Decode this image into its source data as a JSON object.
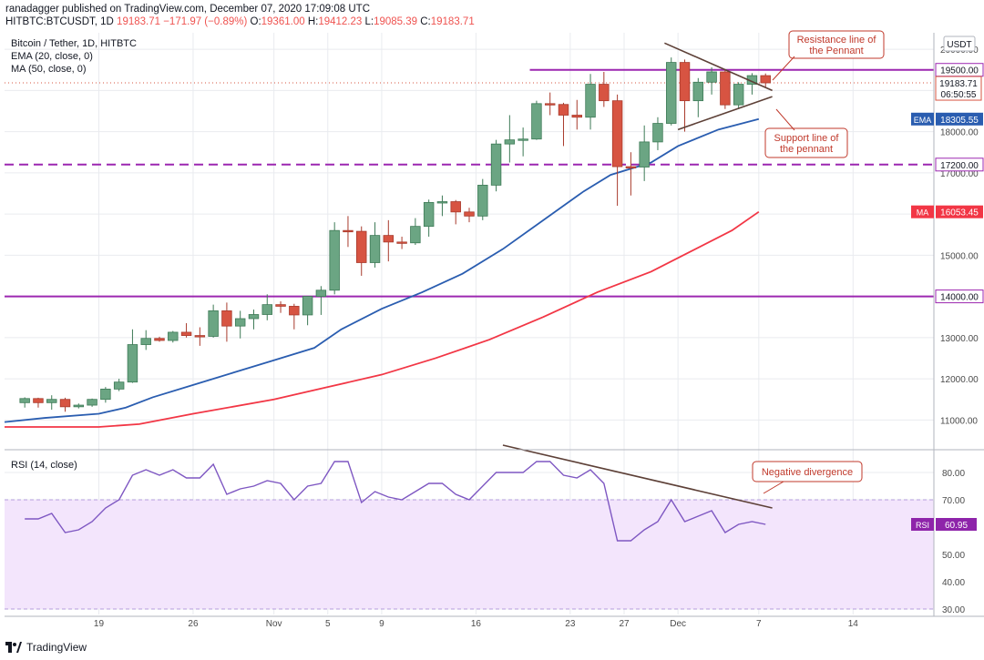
{
  "header": {
    "author": "ranadagger",
    "published_text": "published on TradingView.com, December 07, 2020 17:09:08 UTC",
    "symbol": "HITBTC:BTCUSDT, 1D",
    "price": "19183.71",
    "change": "−171.97 (−0.89%)",
    "o_label": "O:",
    "o_value": "19361.00",
    "h_label": "H:",
    "h_value": "19412.23",
    "l_label": "L:",
    "l_value": "19085.39",
    "c_label": "C:",
    "c_value": "19183.71"
  },
  "legend": {
    "title": "Bitcoin / Tether, 1D, HITBTC",
    "ema": "EMA (20, close, 0)",
    "ma": "MA (50, close, 0)",
    "rsi": "RSI (14, close)"
  },
  "currency": "USDT",
  "footer": {
    "brand": "TradingView"
  },
  "colors": {
    "up": "#6ba583",
    "down": "#d75442",
    "ema": "#2962ff",
    "ma": "#f23645",
    "level": "#9c27b0",
    "rsi": "#7e57c2",
    "band": "#f3e5fc",
    "trend": "#5d4037",
    "grid": "#e9ebef"
  },
  "chart_data": [
    {
      "type": "candlestick",
      "title": "Bitcoin / Tether, 1D, HITBTC",
      "ylim": [
        10300,
        20400
      ],
      "y_ticks": [
        11000,
        12000,
        13000,
        14000,
        15000,
        16000,
        17000,
        18000,
        19000,
        20000
      ],
      "y_tick_labels": [
        "11000.00",
        "12000.00",
        "13000.00",
        "14000.00",
        "15000.00",
        "16000.00",
        "17000.00",
        "18000.00",
        "19000.00",
        "20000.00"
      ],
      "x_ticks": [
        {
          "date": "2020-10-19",
          "label": "19"
        },
        {
          "date": "2020-10-26",
          "label": "26"
        },
        {
          "date": "2020-11-01",
          "label": "Nov"
        },
        {
          "date": "2020-11-05",
          "label": "5"
        },
        {
          "date": "2020-11-09",
          "label": "9"
        },
        {
          "date": "2020-11-16",
          "label": "16"
        },
        {
          "date": "2020-11-23",
          "label": "23"
        },
        {
          "date": "2020-11-27",
          "label": "27"
        },
        {
          "date": "2020-12-01",
          "label": "Dec"
        },
        {
          "date": "2020-12-07",
          "label": "7"
        },
        {
          "date": "2020-12-14",
          "label": "14"
        }
      ],
      "x_range": [
        "2020-10-12",
        "2020-12-20"
      ],
      "candles": [
        {
          "date": "2020-10-13",
          "o": 11420,
          "h": 11550,
          "l": 11300,
          "c": 11520
        },
        {
          "date": "2020-10-14",
          "o": 11520,
          "h": 11540,
          "l": 11300,
          "c": 11420
        },
        {
          "date": "2020-10-15",
          "o": 11420,
          "h": 11600,
          "l": 11250,
          "c": 11500
        },
        {
          "date": "2020-10-16",
          "o": 11500,
          "h": 11540,
          "l": 11200,
          "c": 11320
        },
        {
          "date": "2020-10-17",
          "o": 11320,
          "h": 11400,
          "l": 11280,
          "c": 11360
        },
        {
          "date": "2020-10-18",
          "o": 11360,
          "h": 11520,
          "l": 11320,
          "c": 11500
        },
        {
          "date": "2020-10-19",
          "o": 11500,
          "h": 11800,
          "l": 11420,
          "c": 11750
        },
        {
          "date": "2020-10-20",
          "o": 11750,
          "h": 12000,
          "l": 11700,
          "c": 11920
        },
        {
          "date": "2020-10-21",
          "o": 11920,
          "h": 13200,
          "l": 11900,
          "c": 12830
        },
        {
          "date": "2020-10-22",
          "o": 12830,
          "h": 13180,
          "l": 12700,
          "c": 12980
        },
        {
          "date": "2020-10-23",
          "o": 12980,
          "h": 13020,
          "l": 12900,
          "c": 12930
        },
        {
          "date": "2020-10-24",
          "o": 12930,
          "h": 13160,
          "l": 12880,
          "c": 13130
        },
        {
          "date": "2020-10-25",
          "o": 13130,
          "h": 13350,
          "l": 13000,
          "c": 13050
        },
        {
          "date": "2020-10-26",
          "o": 13050,
          "h": 13250,
          "l": 12800,
          "c": 13030
        },
        {
          "date": "2020-10-27",
          "o": 13030,
          "h": 13800,
          "l": 13000,
          "c": 13650
        },
        {
          "date": "2020-10-28",
          "o": 13650,
          "h": 13850,
          "l": 12900,
          "c": 13280
        },
        {
          "date": "2020-10-29",
          "o": 13280,
          "h": 13650,
          "l": 12980,
          "c": 13460
        },
        {
          "date": "2020-10-30",
          "o": 13460,
          "h": 13680,
          "l": 13200,
          "c": 13560
        },
        {
          "date": "2020-10-31",
          "o": 13560,
          "h": 14050,
          "l": 13420,
          "c": 13800
        },
        {
          "date": "2020-11-01",
          "o": 13800,
          "h": 13880,
          "l": 13600,
          "c": 13760
        },
        {
          "date": "2020-11-02",
          "o": 13760,
          "h": 13820,
          "l": 13200,
          "c": 13550
        },
        {
          "date": "2020-11-03",
          "o": 13550,
          "h": 14000,
          "l": 13300,
          "c": 14000
        },
        {
          "date": "2020-11-04",
          "o": 14000,
          "h": 14250,
          "l": 13550,
          "c": 14150
        },
        {
          "date": "2020-11-05",
          "o": 14150,
          "h": 15800,
          "l": 14050,
          "c": 15600
        },
        {
          "date": "2020-11-06",
          "o": 15600,
          "h": 15950,
          "l": 15200,
          "c": 15580
        },
        {
          "date": "2020-11-07",
          "o": 15580,
          "h": 15700,
          "l": 14500,
          "c": 14820
        },
        {
          "date": "2020-11-08",
          "o": 14820,
          "h": 15800,
          "l": 14700,
          "c": 15480
        },
        {
          "date": "2020-11-09",
          "o": 15480,
          "h": 15850,
          "l": 14850,
          "c": 15320
        },
        {
          "date": "2020-11-10",
          "o": 15320,
          "h": 15450,
          "l": 15150,
          "c": 15300
        },
        {
          "date": "2020-11-11",
          "o": 15300,
          "h": 15900,
          "l": 15250,
          "c": 15700
        },
        {
          "date": "2020-11-12",
          "o": 15700,
          "h": 16350,
          "l": 15450,
          "c": 16280
        },
        {
          "date": "2020-11-13",
          "o": 16280,
          "h": 16450,
          "l": 15950,
          "c": 16300
        },
        {
          "date": "2020-11-14",
          "o": 16300,
          "h": 16340,
          "l": 15750,
          "c": 16050
        },
        {
          "date": "2020-11-15",
          "o": 16050,
          "h": 16150,
          "l": 15800,
          "c": 15950
        },
        {
          "date": "2020-11-16",
          "o": 15950,
          "h": 16850,
          "l": 15850,
          "c": 16700
        },
        {
          "date": "2020-11-17",
          "o": 16700,
          "h": 17800,
          "l": 16550,
          "c": 17700
        },
        {
          "date": "2020-11-18",
          "o": 17700,
          "h": 18400,
          "l": 17250,
          "c": 17800
        },
        {
          "date": "2020-11-19",
          "o": 17800,
          "h": 18100,
          "l": 17400,
          "c": 17820
        },
        {
          "date": "2020-11-20",
          "o": 17820,
          "h": 18750,
          "l": 17800,
          "c": 18680
        },
        {
          "date": "2020-11-21",
          "o": 18680,
          "h": 18950,
          "l": 18400,
          "c": 18660
        },
        {
          "date": "2020-11-22",
          "o": 18660,
          "h": 18700,
          "l": 17650,
          "c": 18400
        },
        {
          "date": "2020-11-23",
          "o": 18400,
          "h": 18770,
          "l": 18050,
          "c": 18350
        },
        {
          "date": "2020-11-24",
          "o": 18350,
          "h": 19400,
          "l": 18050,
          "c": 19150
        },
        {
          "date": "2020-11-25",
          "o": 19150,
          "h": 19450,
          "l": 18600,
          "c": 18750
        },
        {
          "date": "2020-11-26",
          "o": 18750,
          "h": 18900,
          "l": 16200,
          "c": 17150
        },
        {
          "date": "2020-11-27",
          "o": 17150,
          "h": 17500,
          "l": 16450,
          "c": 17140
        },
        {
          "date": "2020-11-28",
          "o": 17140,
          "h": 18150,
          "l": 16800,
          "c": 17750
        },
        {
          "date": "2020-11-29",
          "o": 17750,
          "h": 18350,
          "l": 17550,
          "c": 18200
        },
        {
          "date": "2020-11-30",
          "o": 18200,
          "h": 19800,
          "l": 18150,
          "c": 19680
        },
        {
          "date": "2020-12-01",
          "o": 19680,
          "h": 19750,
          "l": 18000,
          "c": 18750
        },
        {
          "date": "2020-12-02",
          "o": 18750,
          "h": 19300,
          "l": 18350,
          "c": 19200
        },
        {
          "date": "2020-12-03",
          "o": 19200,
          "h": 19560,
          "l": 18900,
          "c": 19450
        },
        {
          "date": "2020-12-04",
          "o": 19450,
          "h": 19500,
          "l": 18550,
          "c": 18650
        },
        {
          "date": "2020-12-05",
          "o": 18650,
          "h": 19200,
          "l": 18550,
          "c": 19150
        },
        {
          "date": "2020-12-06",
          "o": 19150,
          "h": 19420,
          "l": 18900,
          "c": 19360
        },
        {
          "date": "2020-12-07",
          "o": 19360,
          "h": 19412,
          "l": 19085,
          "c": 19184
        }
      ],
      "ema": {
        "name": "EMA",
        "last": "18305.55",
        "values": [
          [
            "2020-10-12",
            10950
          ],
          [
            "2020-10-15",
            11050
          ],
          [
            "2020-10-19",
            11150
          ],
          [
            "2020-10-21",
            11300
          ],
          [
            "2020-10-23",
            11550
          ],
          [
            "2020-10-26",
            11850
          ],
          [
            "2020-10-29",
            12150
          ],
          [
            "2020-11-01",
            12450
          ],
          [
            "2020-11-04",
            12750
          ],
          [
            "2020-11-06",
            13200
          ],
          [
            "2020-11-09",
            13700
          ],
          [
            "2020-11-12",
            14100
          ],
          [
            "2020-11-15",
            14550
          ],
          [
            "2020-11-18",
            15150
          ],
          [
            "2020-11-21",
            15850
          ],
          [
            "2020-11-24",
            16550
          ],
          [
            "2020-11-26",
            16950
          ],
          [
            "2020-11-29",
            17250
          ],
          [
            "2020-12-01",
            17650
          ],
          [
            "2020-12-04",
            18050
          ],
          [
            "2020-12-07",
            18305
          ]
        ]
      },
      "ma": {
        "name": "MA",
        "last": "16053.45",
        "values": [
          [
            "2020-10-12",
            10830
          ],
          [
            "2020-10-19",
            10830
          ],
          [
            "2020-10-22",
            10900
          ],
          [
            "2020-10-26",
            11150
          ],
          [
            "2020-11-01",
            11500
          ],
          [
            "2020-11-05",
            11800
          ],
          [
            "2020-11-09",
            12100
          ],
          [
            "2020-11-13",
            12500
          ],
          [
            "2020-11-17",
            12950
          ],
          [
            "2020-11-21",
            13500
          ],
          [
            "2020-11-25",
            14100
          ],
          [
            "2020-11-29",
            14600
          ],
          [
            "2020-12-02",
            15100
          ],
          [
            "2020-12-05",
            15600
          ],
          [
            "2020-12-07",
            16053
          ]
        ]
      },
      "levels": [
        {
          "value": 19500,
          "label": "19500.00",
          "style": "solid",
          "from": "2020-11-20"
        },
        {
          "value": 17200,
          "label": "17200.00",
          "style": "dashed"
        },
        {
          "value": 14000,
          "label": "14000.00",
          "style": "solid"
        }
      ],
      "last_price": {
        "value": 19183.71,
        "label": "19183.71",
        "countdown": "06:50:55"
      },
      "trendlines": [
        {
          "name": "resistance",
          "from": [
            "2020-11-30",
            20150
          ],
          "to": [
            "2020-12-08",
            19000
          ]
        },
        {
          "name": "support",
          "from": [
            "2020-12-01",
            18050
          ],
          "to": [
            "2020-12-08",
            18850
          ]
        }
      ],
      "annotations": [
        {
          "name": "resistance-callout",
          "lines": [
            "Resistance line of",
            "the Pennant"
          ]
        },
        {
          "name": "support-callout",
          "lines": [
            "Support line of",
            "the pennant"
          ]
        }
      ]
    },
    {
      "type": "line",
      "title": "RSI (14, close)",
      "ylim": [
        28,
        88
      ],
      "y_ticks": [
        30,
        40,
        50,
        60,
        70,
        80
      ],
      "y_tick_labels": [
        "30.00",
        "40.00",
        "50.00",
        "60.00",
        "70.00",
        "80.00"
      ],
      "band": [
        30,
        70
      ],
      "series": [
        {
          "name": "RSI",
          "last": "60.95",
          "values": [
            63,
            63,
            65,
            58,
            59,
            62,
            67,
            70,
            79,
            81,
            79,
            81,
            78,
            78,
            83,
            72,
            74,
            75,
            77,
            76,
            70,
            75,
            76,
            84,
            84,
            69,
            73,
            71,
            70,
            73,
            76,
            76,
            72,
            70,
            75,
            80,
            80,
            80,
            84,
            84,
            79,
            78,
            81,
            76,
            55,
            55,
            59,
            62,
            70,
            62,
            64,
            66,
            58,
            61,
            62,
            61
          ]
        }
      ],
      "trendline": {
        "from": [
          "2020-11-18",
          90
        ],
        "to": [
          "2020-12-08",
          67
        ]
      },
      "annotation": {
        "name": "divergence-callout",
        "lines": [
          "Negative divergence"
        ]
      }
    }
  ]
}
